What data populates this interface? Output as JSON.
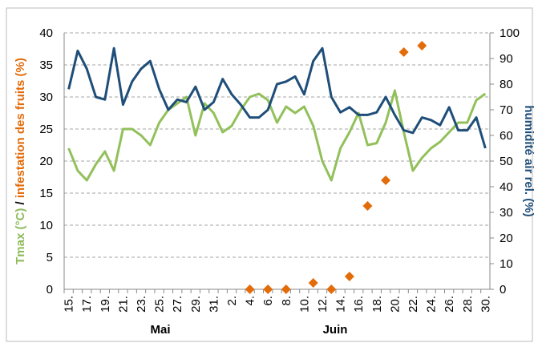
{
  "chart_data": {
    "type": "line",
    "categories": [
      "15.",
      null,
      "17.",
      null,
      "19.",
      null,
      "21.",
      null,
      "23.",
      null,
      "25.",
      null,
      "27.",
      null,
      "29.",
      null,
      "31.",
      null,
      "2.",
      null,
      "4.",
      null,
      "6.",
      null,
      "8.",
      null,
      "10.",
      null,
      "12.",
      null,
      "14.",
      null,
      "16.",
      null,
      "18.",
      null,
      "20.",
      null,
      "22.",
      null,
      "24.",
      null,
      "26.",
      null,
      "28.",
      null,
      "30."
    ],
    "month_labels": [
      "Mai",
      "Juin"
    ],
    "ylabel": [
      "Tmax (°C)",
      " / ",
      "infestation des fruits (%)"
    ],
    "ylabel_colors": [
      "#8dbb5a",
      "#000000",
      "#e36c0a"
    ],
    "y2label": "humidité air rel. (%)",
    "y2label_color": "#1f4e79",
    "ylim": [
      0,
      40
    ],
    "yticks": [
      0,
      5,
      10,
      15,
      20,
      25,
      30,
      35,
      40
    ],
    "y2lim": [
      0,
      100
    ],
    "y2ticks": [
      0,
      10,
      20,
      30,
      40,
      50,
      60,
      70,
      80,
      90,
      100
    ],
    "grid": true,
    "series": [
      {
        "name": "Tmax",
        "type": "line",
        "color": "#92c05a",
        "values": [
          22,
          18.5,
          17,
          19.5,
          21.5,
          18.5,
          25,
          25,
          24,
          22.5,
          26,
          28,
          29,
          30,
          24,
          29,
          27.5,
          24.5,
          25.5,
          28,
          30,
          30.5,
          29.5,
          26,
          28.5,
          27.5,
          28.5,
          25.5,
          20,
          17,
          22,
          24.5,
          27.5,
          22.5,
          22.8,
          26,
          31,
          24.5,
          18.5,
          20.5,
          22,
          23,
          24.5,
          26,
          26,
          29.5,
          30.5
        ]
      },
      {
        "name": "humidité air rel.",
        "type": "line",
        "axis": "y2",
        "color": "#1f4e79",
        "values": [
          78,
          93,
          86,
          75,
          74,
          94,
          72,
          81,
          86,
          89,
          78,
          70,
          74,
          73,
          79,
          70,
          73,
          82,
          76,
          72,
          67,
          67,
          70,
          80,
          81,
          83,
          76,
          89,
          94,
          75,
          69,
          71,
          68,
          68,
          69,
          75,
          68,
          62,
          61,
          67,
          66,
          64,
          71,
          62,
          62,
          67,
          55
        ]
      },
      {
        "name": "infestation des fruits",
        "type": "scatter",
        "color": "#e36c0a",
        "values": [
          null,
          null,
          null,
          null,
          null,
          null,
          null,
          null,
          null,
          null,
          null,
          null,
          null,
          null,
          null,
          null,
          null,
          null,
          null,
          null,
          0,
          null,
          0,
          null,
          0,
          null,
          null,
          1,
          null,
          0,
          null,
          2,
          null,
          13,
          null,
          17,
          null,
          37,
          null,
          38,
          null,
          null,
          null,
          null,
          null,
          null,
          null
        ]
      }
    ]
  }
}
